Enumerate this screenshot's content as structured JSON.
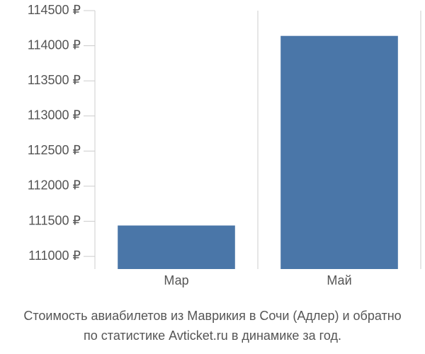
{
  "chart_data": {
    "type": "bar",
    "title": [
      "Стоимость авиабилетов из Маврикия в Сочи (Адлер) и обратно",
      "по статистике Avticket.ru в динамике за год."
    ],
    "categories": [
      "Мар",
      "Май"
    ],
    "values": [
      111440,
      114140
    ],
    "color": "#4a76a8",
    "ylim": [
      110820,
      114500
    ],
    "yticks": [
      {
        "value": 111000,
        "label": "111000 ₽"
      },
      {
        "value": 111500,
        "label": "111500 ₽"
      },
      {
        "value": 112000,
        "label": "112000 ₽"
      },
      {
        "value": 112500,
        "label": "112500 ₽"
      },
      {
        "value": 113000,
        "label": "113000 ₽"
      },
      {
        "value": 113500,
        "label": "113500 ₽"
      },
      {
        "value": 114000,
        "label": "114000 ₽"
      },
      {
        "value": 114500,
        "label": "114500 ₽"
      }
    ]
  }
}
